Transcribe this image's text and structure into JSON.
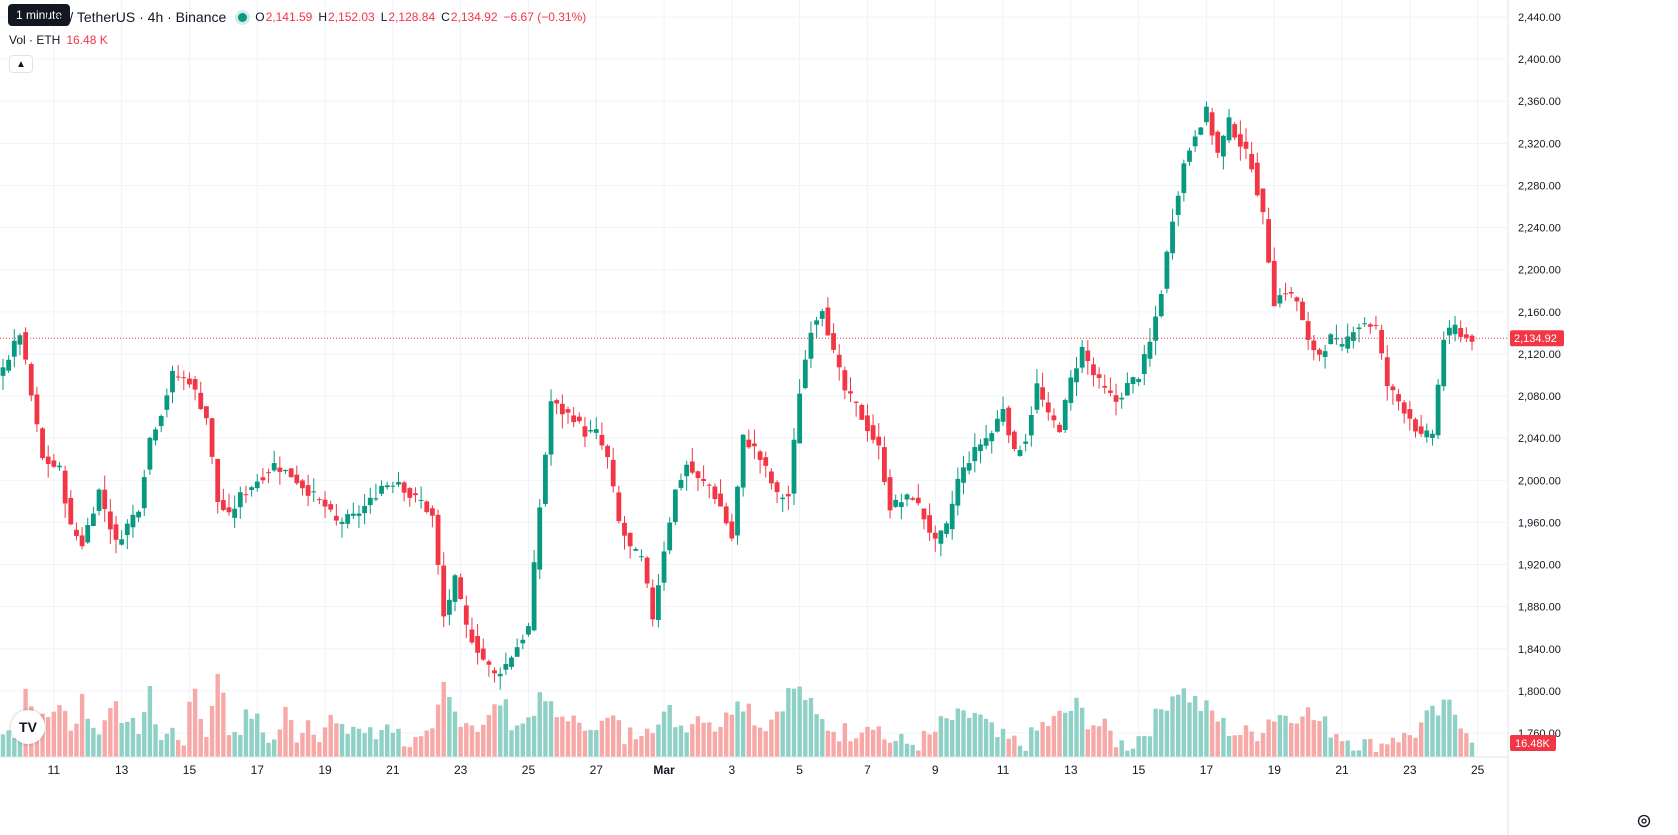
{
  "header": {
    "tooltip": "1 minute",
    "title": "um / TetherUS · 4h · Binance",
    "open_label": "O",
    "open": "2,141.59",
    "high_label": "H",
    "high": "2,152.03",
    "low_label": "L",
    "low": "2,128.84",
    "close_label": "C",
    "close": "2,134.92",
    "change": "−6.67 (−0.31%)"
  },
  "volume_header": {
    "label": "Vol · ETH",
    "value": "16.48 K"
  },
  "logo_text": "TV",
  "colors": {
    "up": "#089981",
    "down": "#f23645",
    "vol_up": "#8fd1c6",
    "vol_down": "#f7a9a7",
    "grid": "#f0f3fa"
  },
  "chart_data": {
    "type": "candlestick",
    "interval": "4h",
    "price_axis": {
      "ylim": [
        1720,
        2470
      ],
      "ticks": [
        "2,440.00",
        "2,400.00",
        "2,360.00",
        "2,320.00",
        "2,280.00",
        "2,240.00",
        "2,200.00",
        "2,160.00",
        "2,120.00",
        "2,080.00",
        "2,040.00",
        "2,000.00",
        "1,960.00",
        "1,920.00",
        "1,880.00",
        "1,840.00",
        "1,800.00",
        "1,760.00"
      ],
      "tick_values": [
        2440,
        2400,
        2360,
        2320,
        2280,
        2240,
        2200,
        2160,
        2120,
        2080,
        2040,
        2000,
        1960,
        1920,
        1880,
        1840,
        1800,
        1760
      ]
    },
    "time_axis": {
      "labels": [
        "11",
        "13",
        "15",
        "17",
        "19",
        "21",
        "23",
        "25",
        "27",
        "Mar",
        "3",
        "5",
        "7",
        "9",
        "11",
        "13",
        "15",
        "17",
        "19",
        "21",
        "23",
        "25"
      ],
      "candle_index": [
        9,
        21,
        33,
        45,
        57,
        69,
        81,
        93,
        105,
        117,
        129,
        141,
        153,
        165,
        177,
        189,
        201,
        213,
        225,
        237,
        249,
        261
      ]
    },
    "last_price": "2,134.92",
    "last_price_value": 2134.92,
    "last_volume": "16.48K",
    "volume_scale_max": 95,
    "anchors": [
      [
        0,
        2105
      ],
      [
        3,
        2140
      ],
      [
        5,
        2080
      ],
      [
        7,
        2020
      ],
      [
        10,
        2010
      ],
      [
        12,
        1955
      ],
      [
        14,
        1940
      ],
      [
        17,
        1990
      ],
      [
        20,
        1940
      ],
      [
        24,
        1975
      ],
      [
        26,
        2040
      ],
      [
        28,
        2065
      ],
      [
        30,
        2100
      ],
      [
        33,
        2095
      ],
      [
        36,
        2060
      ],
      [
        38,
        1980
      ],
      [
        40,
        1965
      ],
      [
        42,
        1985
      ],
      [
        45,
        2000
      ],
      [
        48,
        2015
      ],
      [
        51,
        2005
      ],
      [
        54,
        1990
      ],
      [
        57,
        1975
      ],
      [
        59,
        1960
      ],
      [
        62,
        1965
      ],
      [
        65,
        1980
      ],
      [
        67,
        1995
      ],
      [
        70,
        2000
      ],
      [
        72,
        1985
      ],
      [
        74,
        1980
      ],
      [
        76,
        1965
      ],
      [
        78,
        1870
      ],
      [
        80,
        1905
      ],
      [
        82,
        1860
      ],
      [
        85,
        1830
      ],
      [
        87,
        1815
      ],
      [
        89,
        1825
      ],
      [
        93,
        1860
      ],
      [
        95,
        1975
      ],
      [
        97,
        2075
      ],
      [
        99,
        2065
      ],
      [
        101,
        2060
      ],
      [
        103,
        2045
      ],
      [
        105,
        2045
      ],
      [
        107,
        2020
      ],
      [
        109,
        1960
      ],
      [
        111,
        1935
      ],
      [
        113,
        1925
      ],
      [
        115,
        1870
      ],
      [
        117,
        1935
      ],
      [
        119,
        1990
      ],
      [
        121,
        2015
      ],
      [
        123,
        2000
      ],
      [
        125,
        1995
      ],
      [
        127,
        1975
      ],
      [
        129,
        1945
      ],
      [
        131,
        2040
      ],
      [
        133,
        2030
      ],
      [
        135,
        2010
      ],
      [
        137,
        1985
      ],
      [
        139,
        1985
      ],
      [
        141,
        2085
      ],
      [
        143,
        2145
      ],
      [
        145,
        2165
      ],
      [
        147,
        2120
      ],
      [
        149,
        2085
      ],
      [
        151,
        2070
      ],
      [
        153,
        2050
      ],
      [
        155,
        2030
      ],
      [
        157,
        1975
      ],
      [
        159,
        1980
      ],
      [
        161,
        1985
      ],
      [
        163,
        1965
      ],
      [
        165,
        1940
      ],
      [
        167,
        1955
      ],
      [
        169,
        2000
      ],
      [
        171,
        2020
      ],
      [
        173,
        2035
      ],
      [
        175,
        2045
      ],
      [
        177,
        2070
      ],
      [
        179,
        2025
      ],
      [
        181,
        2040
      ],
      [
        183,
        2090
      ],
      [
        185,
        2060
      ],
      [
        187,
        2050
      ],
      [
        189,
        2095
      ],
      [
        191,
        2125
      ],
      [
        193,
        2100
      ],
      [
        195,
        2085
      ],
      [
        197,
        2075
      ],
      [
        199,
        2090
      ],
      [
        201,
        2100
      ],
      [
        203,
        2130
      ],
      [
        205,
        2180
      ],
      [
        207,
        2250
      ],
      [
        209,
        2300
      ],
      [
        211,
        2330
      ],
      [
        213,
        2350
      ],
      [
        215,
        2310
      ],
      [
        217,
        2340
      ],
      [
        219,
        2320
      ],
      [
        221,
        2300
      ],
      [
        223,
        2250
      ],
      [
        225,
        2170
      ],
      [
        227,
        2180
      ],
      [
        229,
        2170
      ],
      [
        231,
        2130
      ],
      [
        233,
        2120
      ],
      [
        235,
        2135
      ],
      [
        237,
        2125
      ],
      [
        239,
        2145
      ],
      [
        241,
        2150
      ],
      [
        243,
        2145
      ],
      [
        245,
        2090
      ],
      [
        247,
        2075
      ],
      [
        249,
        2060
      ],
      [
        251,
        2040
      ],
      [
        253,
        2045
      ],
      [
        255,
        2135
      ],
      [
        257,
        2145
      ],
      [
        259,
        2135
      ]
    ],
    "volume_anchors": [
      [
        0,
        18
      ],
      [
        2,
        22
      ],
      [
        4,
        55
      ],
      [
        6,
        25
      ],
      [
        8,
        30
      ],
      [
        10,
        45
      ],
      [
        12,
        18
      ],
      [
        14,
        50
      ],
      [
        16,
        20
      ],
      [
        18,
        28
      ],
      [
        20,
        50
      ],
      [
        22,
        20
      ],
      [
        24,
        25
      ],
      [
        26,
        48
      ],
      [
        28,
        15
      ],
      [
        30,
        20
      ],
      [
        32,
        15
      ],
      [
        34,
        55
      ],
      [
        36,
        15
      ],
      [
        38,
        72
      ],
      [
        40,
        20
      ],
      [
        42,
        25
      ],
      [
        44,
        35
      ],
      [
        46,
        20
      ],
      [
        48,
        12
      ],
      [
        50,
        35
      ],
      [
        52,
        18
      ],
      [
        54,
        30
      ],
      [
        56,
        20
      ],
      [
        58,
        30
      ],
      [
        60,
        18
      ],
      [
        62,
        25
      ],
      [
        64,
        20
      ],
      [
        66,
        15
      ],
      [
        68,
        30
      ],
      [
        70,
        18
      ],
      [
        72,
        12
      ],
      [
        74,
        10
      ],
      [
        76,
        15
      ],
      [
        78,
        55
      ],
      [
        80,
        35
      ],
      [
        82,
        30
      ],
      [
        84,
        25
      ],
      [
        86,
        30
      ],
      [
        88,
        45
      ],
      [
        90,
        30
      ],
      [
        92,
        25
      ],
      [
        94,
        40
      ],
      [
        96,
        45
      ],
      [
        98,
        30
      ],
      [
        100,
        35
      ],
      [
        102,
        20
      ],
      [
        104,
        30
      ],
      [
        106,
        25
      ],
      [
        108,
        30
      ],
      [
        110,
        15
      ],
      [
        112,
        20
      ],
      [
        114,
        30
      ],
      [
        116,
        25
      ],
      [
        118,
        35
      ],
      [
        120,
        25
      ],
      [
        122,
        30
      ],
      [
        124,
        35
      ],
      [
        126,
        25
      ],
      [
        128,
        30
      ],
      [
        130,
        50
      ],
      [
        132,
        40
      ],
      [
        134,
        25
      ],
      [
        136,
        30
      ],
      [
        138,
        45
      ],
      [
        140,
        55
      ],
      [
        142,
        48
      ],
      [
        144,
        30
      ],
      [
        146,
        25
      ],
      [
        148,
        20
      ],
      [
        150,
        20
      ],
      [
        152,
        25
      ],
      [
        154,
        30
      ],
      [
        156,
        15
      ],
      [
        158,
        12
      ],
      [
        160,
        10
      ],
      [
        162,
        12
      ],
      [
        164,
        15
      ],
      [
        166,
        25
      ],
      [
        168,
        30
      ],
      [
        170,
        30
      ],
      [
        172,
        35
      ],
      [
        174,
        25
      ],
      [
        176,
        15
      ],
      [
        178,
        12
      ],
      [
        180,
        10
      ],
      [
        182,
        15
      ],
      [
        184,
        25
      ],
      [
        186,
        28
      ],
      [
        188,
        35
      ],
      [
        190,
        40
      ],
      [
        192,
        30
      ],
      [
        194,
        25
      ],
      [
        196,
        18
      ],
      [
        198,
        10
      ],
      [
        200,
        12
      ],
      [
        202,
        20
      ],
      [
        204,
        30
      ],
      [
        206,
        45
      ],
      [
        208,
        55
      ],
      [
        210,
        48
      ],
      [
        212,
        40
      ],
      [
        214,
        35
      ],
      [
        216,
        25
      ],
      [
        218,
        20
      ],
      [
        220,
        18
      ],
      [
        222,
        20
      ],
      [
        224,
        30
      ],
      [
        226,
        35
      ],
      [
        228,
        30
      ],
      [
        230,
        40
      ],
      [
        232,
        30
      ],
      [
        234,
        25
      ],
      [
        236,
        20
      ],
      [
        238,
        15
      ],
      [
        240,
        12
      ],
      [
        242,
        8
      ],
      [
        244,
        10
      ],
      [
        246,
        18
      ],
      [
        248,
        15
      ],
      [
        250,
        20
      ],
      [
        252,
        30
      ],
      [
        254,
        35
      ],
      [
        256,
        40
      ],
      [
        258,
        30
      ],
      [
        260,
        18
      ]
    ]
  }
}
